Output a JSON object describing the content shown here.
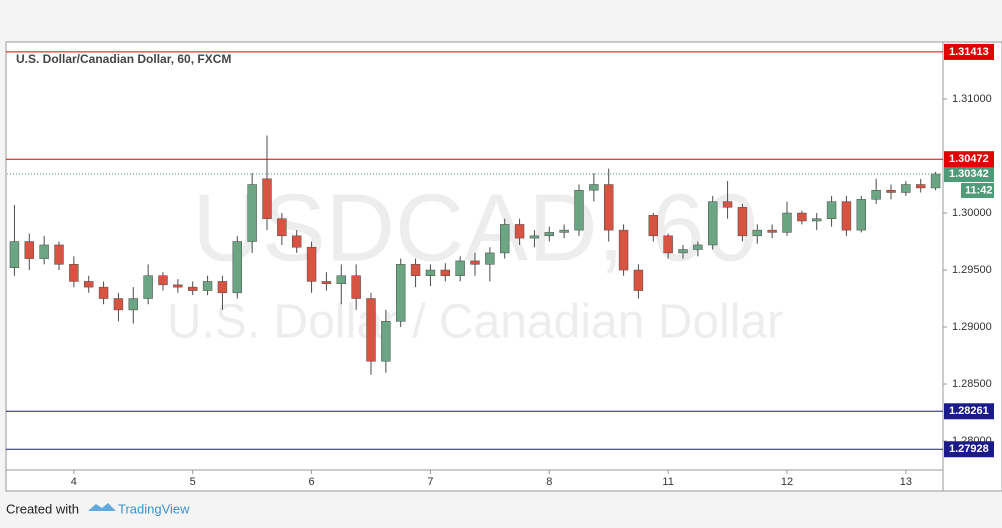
{
  "chart_data": {
    "type": "candlestick",
    "title": "U.S. Dollar/Canadian Dollar, 60, FXCM",
    "watermark": "USDCAD, 60",
    "watermark_subtitle": "U.S. Dollar / Canadian Dollar",
    "categories": [
      null,
      null,
      null,
      null,
      "4",
      null,
      null,
      null,
      null,
      null,
      null,
      null,
      "5",
      null,
      null,
      null,
      null,
      null,
      null,
      null,
      "6",
      null,
      null,
      null,
      null,
      null,
      null,
      null,
      "7",
      null,
      null,
      null,
      null,
      null,
      null,
      null,
      "8",
      null,
      null,
      null,
      null,
      null,
      null,
      null,
      "11",
      null,
      null,
      null,
      null,
      null,
      null,
      null,
      "12",
      null,
      null,
      null,
      null,
      null,
      null,
      null,
      "13",
      null,
      null
    ],
    "open": [
      1.2952,
      1.2975,
      1.296,
      1.2972,
      1.2955,
      1.294,
      1.2935,
      1.2925,
      1.2915,
      1.2925,
      1.2945,
      1.2937,
      1.2935,
      1.2932,
      1.294,
      1.293,
      1.2975,
      1.303,
      1.2995,
      1.298,
      1.297,
      1.294,
      1.2938,
      1.2945,
      1.2925,
      1.287,
      1.2905,
      1.2955,
      1.2945,
      1.295,
      1.2945,
      1.2958,
      1.2955,
      1.2965,
      1.299,
      1.2978,
      1.298,
      1.2983,
      1.2985,
      1.302,
      1.3025,
      1.2985,
      1.295,
      1.2998,
      1.298,
      1.2965,
      1.2968,
      1.2972,
      1.301,
      1.3005,
      1.298,
      1.2985,
      1.2983,
      1.3,
      1.2993,
      1.2995,
      1.301,
      1.2985,
      1.3012,
      1.302,
      1.3018,
      1.3025,
      1.3022
    ],
    "high": [
      1.3007,
      1.2982,
      1.298,
      1.2975,
      1.2962,
      1.2945,
      1.294,
      1.293,
      1.2935,
      1.2955,
      1.2948,
      1.2942,
      1.294,
      1.2945,
      1.2945,
      1.298,
      1.3035,
      1.3068,
      1.3,
      1.2985,
      1.2975,
      1.2948,
      1.2955,
      1.2955,
      1.293,
      1.2915,
      1.296,
      1.296,
      1.2955,
      1.2956,
      1.2962,
      1.2965,
      1.297,
      1.2995,
      1.2995,
      1.2985,
      1.2988,
      1.299,
      1.3025,
      1.3035,
      1.3039,
      1.299,
      1.2955,
      1.3,
      1.2982,
      1.2972,
      1.2975,
      1.3015,
      1.3028,
      1.3008,
      1.299,
      1.299,
      1.301,
      1.3002,
      1.3,
      1.3015,
      1.3015,
      1.3015,
      1.303,
      1.3025,
      1.3028,
      1.303,
      1.3036
    ],
    "low": [
      1.2945,
      1.295,
      1.2955,
      1.295,
      1.2935,
      1.293,
      1.292,
      1.2905,
      1.2903,
      1.292,
      1.2932,
      1.293,
      1.2928,
      1.2928,
      1.2915,
      1.2925,
      1.2965,
      1.2985,
      1.2972,
      1.2965,
      1.293,
      1.2932,
      1.292,
      1.2915,
      1.2858,
      1.286,
      1.29,
      1.2935,
      1.2936,
      1.294,
      1.294,
      1.2945,
      1.294,
      1.296,
      1.2972,
      1.297,
      1.2975,
      1.2978,
      1.298,
      1.301,
      1.2975,
      1.2945,
      1.2925,
      1.2975,
      1.296,
      1.296,
      1.2962,
      1.2968,
      1.2995,
      1.2975,
      1.2973,
      1.2978,
      1.298,
      1.299,
      1.2985,
      1.2988,
      1.298,
      1.2983,
      1.3008,
      1.3012,
      1.3015,
      1.3018,
      1.302
    ],
    "close": [
      1.2975,
      1.296,
      1.2972,
      1.2955,
      1.294,
      1.2935,
      1.2925,
      1.2915,
      1.2925,
      1.2945,
      1.2937,
      1.2935,
      1.2932,
      1.294,
      1.293,
      1.2975,
      1.3025,
      1.2995,
      1.298,
      1.297,
      1.294,
      1.2938,
      1.2945,
      1.2925,
      1.287,
      1.2905,
      1.2955,
      1.2945,
      1.295,
      1.2945,
      1.2958,
      1.2955,
      1.2965,
      1.299,
      1.2978,
      1.298,
      1.2983,
      1.2985,
      1.302,
      1.3025,
      1.2985,
      1.295,
      1.2932,
      1.298,
      1.2965,
      1.2968,
      1.2972,
      1.301,
      1.3005,
      1.298,
      1.2985,
      1.2983,
      1.3,
      1.2993,
      1.2995,
      1.301,
      1.2985,
      1.3012,
      1.302,
      1.3018,
      1.3025,
      1.3022,
      1.30342
    ],
    "up_color": "#6ba583",
    "down_color": "#d75442",
    "wick_color": "#4a4a4a",
    "ylim": [
      1.27746,
      1.315
    ],
    "yticks": [
      {
        "value": 1.28,
        "label": "1.28000"
      },
      {
        "value": 1.285,
        "label": "1.28500"
      },
      {
        "value": 1.29,
        "label": "1.29000"
      },
      {
        "value": 1.295,
        "label": "1.29500"
      },
      {
        "value": 1.3,
        "label": "1.30000"
      },
      {
        "value": 1.31,
        "label": "1.31000"
      }
    ],
    "levels": [
      {
        "value": 1.31413,
        "color": "#e00000"
      },
      {
        "value": 1.30472,
        "color": "#e00000"
      },
      {
        "value": 1.28261,
        "color": "#1a1a8c"
      },
      {
        "value": 1.27928,
        "color": "#1a1a8c"
      }
    ],
    "last_price": 1.30342,
    "last_price_color": "#4f9a78",
    "countdown": "11:42"
  },
  "footer": {
    "created_with": "Created with",
    "brand": "TradingView"
  }
}
